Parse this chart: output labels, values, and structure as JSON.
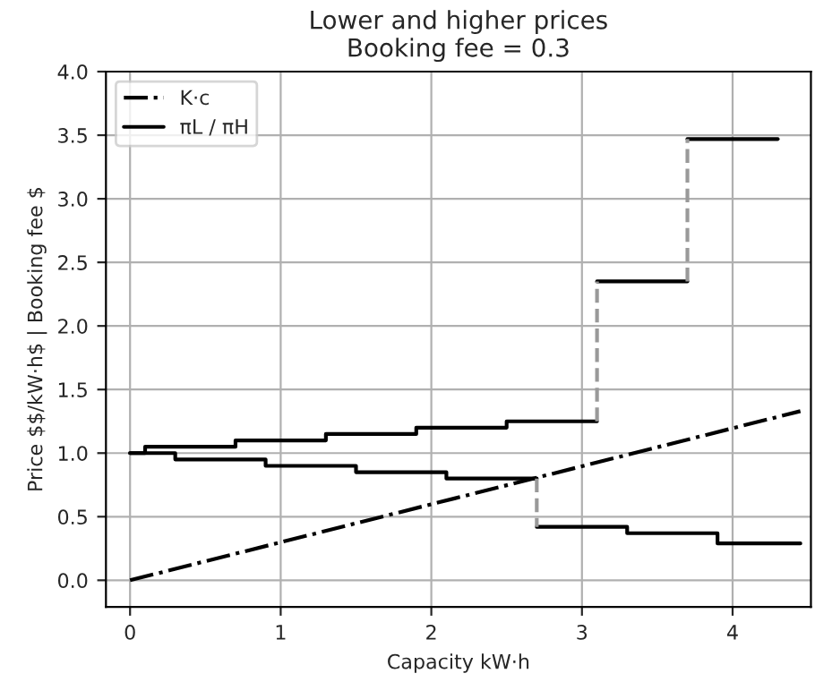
{
  "chart_data": {
    "type": "step",
    "title": "Lower and higher prices\nBooking fee = 0.3",
    "xlabel": "Capacity kW·h",
    "ylabel": "Price $$/kW·h$ | Booking fee $",
    "xlim": [
      -0.16,
      4.52
    ],
    "xticks": [
      0,
      1,
      2,
      3,
      4
    ],
    "ylim": [
      -0.21,
      4.0
    ],
    "yticks": [
      {
        "value": 0,
        "label": "0.0"
      },
      0.5,
      {
        "value": 1,
        "label": "1.0"
      },
      1.5,
      {
        "value": 2,
        "label": "2.0"
      },
      2.5,
      {
        "value": 3,
        "label": "3.0"
      },
      3.5,
      {
        "value": 4,
        "label": "4.0"
      }
    ],
    "grid": true,
    "legend": "top left",
    "marker": "none",
    "series": [
      {
        "name": "K·c",
        "type": "line",
        "color": "#000000",
        "line_style": "dashdot",
        "x": [
          0,
          4.45
        ],
        "values": [
          0,
          1.33
        ]
      },
      {
        "name": "πL / πH",
        "color": "#000000",
        "line_style": "solid",
        "x": [
          0,
          0.3,
          0.9,
          1.5,
          2.1,
          2.7
        ],
        "values": [
          1.0,
          0.95,
          0.9,
          0.85,
          0.8,
          0.8
        ]
      },
      {
        "color": "#000000",
        "line_style": "solid",
        "x": [
          2.7,
          3.3,
          3.9,
          4.45
        ],
        "values": [
          0.42,
          0.37,
          0.29,
          0.29
        ]
      },
      {
        "color": "#000000",
        "line_style": "solid",
        "x": [
          0,
          0.1,
          0.7,
          1.3,
          1.9,
          2.5,
          3.1
        ],
        "values": [
          1.0,
          1.05,
          1.1,
          1.15,
          1.2,
          1.25,
          1.25
        ]
      },
      {
        "color": "#000000",
        "line_style": "solid",
        "x": [
          3.1,
          3.7
        ],
        "values": [
          2.35,
          2.35
        ]
      },
      {
        "color": "#000000",
        "line_style": "solid",
        "x": [
          3.7,
          4.3
        ],
        "values": [
          3.47,
          3.47
        ]
      },
      {
        "type": "line",
        "color": "#999999",
        "line_style": "dashed",
        "x": [
          2.7,
          2.7
        ],
        "values": [
          0.8,
          0.42
        ]
      },
      {
        "type": "line",
        "color": "#999999",
        "line_style": "dashed",
        "x": [
          3.1,
          3.1
        ],
        "values": [
          1.25,
          2.35
        ]
      },
      {
        "type": "line",
        "color": "#999999",
        "line_style": "dashed",
        "x": [
          3.7,
          3.7
        ],
        "values": [
          2.35,
          3.47
        ]
      }
    ]
  }
}
